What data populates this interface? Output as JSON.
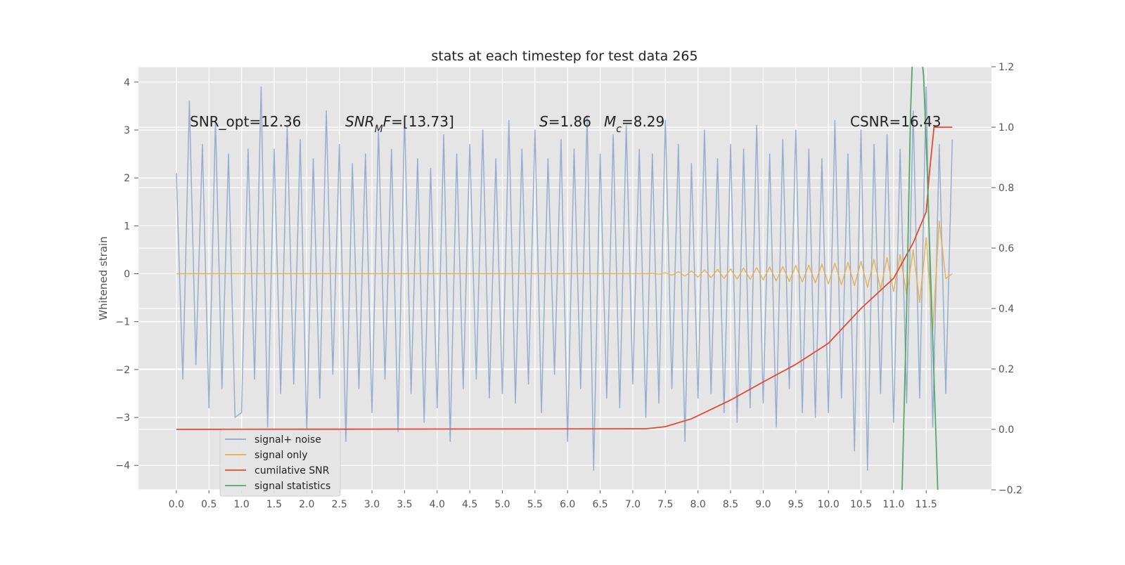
{
  "chart_data": {
    "type": "line",
    "title": "stats at each timestep for test data 265",
    "ylabel": "Whitened strain",
    "xlim": [
      -0.58,
      12.5
    ],
    "ylim": [
      -4.51,
      4.32
    ],
    "y2lim": [
      -0.2,
      1.2
    ],
    "xticks": [
      {
        "value": 0,
        "label": "0.0"
      },
      0.5,
      {
        "value": 1,
        "label": "1.0"
      },
      1.5,
      {
        "value": 2,
        "label": "2.0"
      },
      2.5,
      {
        "value": 3,
        "label": "3.0"
      },
      3.5,
      {
        "value": 4,
        "label": "4.0"
      },
      4.5,
      {
        "value": 5,
        "label": "5.0"
      },
      5.5,
      {
        "value": 6,
        "label": "6.0"
      },
      6.5,
      {
        "value": 7,
        "label": "7.0"
      },
      7.5,
      {
        "value": 8,
        "label": "8.0"
      },
      8.5,
      {
        "value": 9,
        "label": "9.0"
      },
      9.5,
      {
        "value": 10,
        "label": "10.0"
      },
      10.5,
      {
        "value": 11,
        "label": "11.0"
      },
      11.5
    ],
    "yticks": [
      {
        "value": -4,
        "label": "−4"
      },
      {
        "value": -3,
        "label": "−3"
      },
      {
        "value": -2,
        "label": "−2"
      },
      {
        "value": -1,
        "label": "−1"
      },
      0,
      1,
      2,
      3,
      4
    ],
    "y2ticks": [
      {
        "value": -0.2,
        "label": "−0.2"
      },
      {
        "value": 0,
        "label": "0.0"
      },
      0.2,
      0.4,
      0.6,
      0.8,
      {
        "value": 1,
        "label": "1.0"
      },
      1.2
    ],
    "grid": true,
    "legend": "lower left",
    "x": [
      0,
      0.1,
      0.2,
      0.3,
      0.4,
      0.5,
      0.6,
      0.7,
      0.8,
      0.9,
      1,
      1.1,
      1.2,
      1.3,
      1.4,
      1.5,
      1.6,
      1.7,
      1.8,
      1.9,
      2,
      2.1,
      2.2,
      2.3,
      2.4,
      2.5,
      2.6,
      2.7,
      2.8,
      2.9,
      3,
      3.1,
      3.2,
      3.3,
      3.4,
      3.5,
      3.6,
      3.7,
      3.8,
      3.9,
      4,
      4.1,
      4.2,
      4.3,
      4.4,
      4.5,
      4.6,
      4.7,
      4.8,
      4.9,
      5,
      5.1,
      5.2,
      5.3,
      5.4,
      5.5,
      5.6,
      5.7,
      5.8,
      5.9,
      6,
      6.1,
      6.2,
      6.3,
      6.4,
      6.5,
      6.6,
      6.7,
      6.8,
      6.9,
      7,
      7.1,
      7.2,
      7.3,
      7.4,
      7.5,
      7.6,
      7.7,
      7.8,
      7.9,
      8,
      8.1,
      8.2,
      8.3,
      8.4,
      8.5,
      8.6,
      8.7,
      8.8,
      8.9,
      9,
      9.1,
      9.2,
      9.3,
      9.4,
      9.5,
      9.6,
      9.7,
      9.8,
      9.9,
      10,
      10.1,
      10.2,
      10.3,
      10.4,
      10.5,
      10.6,
      10.7,
      10.8,
      10.9,
      11,
      11.1,
      11.2,
      11.3,
      11.4,
      11.5,
      11.6,
      11.7,
      11.8,
      11.9
    ],
    "series": [
      {
        "name": "signal+ noise",
        "color": "#8fa6cc",
        "values": [
          2.1,
          -2.2,
          3.6,
          -1.9,
          2.7,
          -2.8,
          3.2,
          -2.4,
          2.5,
          -3.0,
          -2.9,
          2.6,
          -2.2,
          3.9,
          -3.2,
          2.6,
          -2.5,
          3.1,
          -2.3,
          2.8,
          -3.3,
          2.4,
          -2.6,
          3.4,
          -2.1,
          2.7,
          -3.5,
          2.3,
          -2.4,
          2.5,
          -2.9,
          3.0,
          -2.2,
          2.6,
          -3.3,
          3.3,
          -2.5,
          2.4,
          -3.1,
          2.2,
          -2.8,
          2.9,
          -3.5,
          2.5,
          -2.4,
          2.7,
          -2.2,
          3.0,
          -2.6,
          2.4,
          -2.5,
          3.2,
          -2.7,
          2.6,
          -2.3,
          3.0,
          -2.9,
          2.4,
          -2.1,
          2.8,
          -3.5,
          2.6,
          -2.4,
          3.3,
          -4.1,
          2.5,
          -2.6,
          2.9,
          -2.8,
          3.1,
          -2.3,
          2.6,
          -3.0,
          2.5,
          -2.7,
          3.2,
          -2.4,
          2.7,
          -3.5,
          2.3,
          -2.6,
          3.0,
          -2.5,
          2.4,
          -2.9,
          2.7,
          -3.1,
          2.6,
          -2.8,
          3.1,
          -2.7,
          2.5,
          -3.2,
          2.8,
          -2.4,
          3.0,
          -2.9,
          2.6,
          -3.0,
          2.4,
          -2.9,
          3.2,
          -2.6,
          2.5,
          -3.7,
          3.0,
          -4.1,
          2.7,
          -2.5,
          2.9,
          -3.1,
          2.6,
          -2.7,
          3.4,
          -2.6,
          3.9,
          -3.2,
          2.7,
          -2.5,
          2.8
        ]
      },
      {
        "name": "signal only",
        "color": "#e5ae4a",
        "values": [
          0,
          0,
          0,
          0,
          0,
          0,
          0,
          0,
          0,
          0,
          0,
          0,
          0,
          0,
          0,
          0,
          0,
          0,
          0,
          0,
          0,
          0,
          0,
          0,
          0,
          0,
          0,
          0,
          0,
          0,
          0,
          0,
          0,
          0,
          0,
          0,
          0,
          0,
          0,
          0,
          0,
          0,
          0,
          0,
          0,
          0,
          0,
          0,
          0,
          0,
          0,
          0,
          0,
          0,
          0,
          0,
          0,
          0,
          0,
          0,
          0,
          0,
          0,
          0,
          0,
          0,
          0,
          0,
          0,
          0,
          0,
          0,
          0,
          0.01,
          -0.01,
          0.02,
          -0.03,
          0.04,
          -0.05,
          0.06,
          -0.07,
          0.08,
          -0.08,
          0.09,
          -0.1,
          0.1,
          -0.11,
          0.12,
          -0.12,
          0.13,
          -0.13,
          0.14,
          -0.15,
          0.15,
          -0.16,
          0.17,
          -0.17,
          0.18,
          -0.19,
          0.2,
          -0.21,
          0.22,
          -0.23,
          0.24,
          -0.25,
          0.26,
          -0.28,
          0.3,
          -0.32,
          0.34,
          -0.37,
          0.4,
          -0.44,
          0.5,
          -0.6,
          0.75,
          -1.2,
          1.1,
          -0.1,
          0
        ]
      },
      {
        "name": "cumilative SNR",
        "color": "#e24a33",
        "axis": "y2",
        "x": [
          0,
          7.2,
          7.5,
          7.9,
          8.5,
          9,
          9.5,
          10,
          10.5,
          11,
          11.3,
          11.5,
          11.55,
          11.62,
          11.9
        ],
        "values": [
          0,
          0.002,
          0.009,
          0.035,
          0.097,
          0.157,
          0.215,
          0.285,
          0.4,
          0.5,
          0.617,
          0.72,
          0.85,
          1.0,
          1.0
        ]
      },
      {
        "name": "signal statistics",
        "color": "#55a868",
        "axis": "y2",
        "x": [
          11.13,
          11.2,
          11.26,
          11.3,
          11.4,
          11.46,
          11.5,
          11.6,
          11.68
        ],
        "values": [
          -0.2,
          0.4,
          1.05,
          1.3,
          1.3,
          1.17,
          0.95,
          0.3,
          -0.22
        ]
      }
    ],
    "annotations": [
      [
        {
          "text": "SNR_opt=12.36"
        }
      ],
      [
        {
          "text": "SNR",
          "italic": true
        },
        {
          "text": "M",
          "italic": true,
          "sub": true
        },
        {
          "text": "F",
          "italic": true
        },
        {
          "text": "=[13.73]"
        }
      ],
      [
        {
          "text": "S",
          "italic": true
        },
        {
          "text": "=1.86"
        }
      ],
      [
        {
          "text": "M",
          "italic": true
        },
        {
          "text": "c",
          "italic": true,
          "sub": true
        },
        {
          "text": "=8.29"
        }
      ],
      [
        {
          "text": "CSNR=16.43"
        }
      ]
    ]
  }
}
